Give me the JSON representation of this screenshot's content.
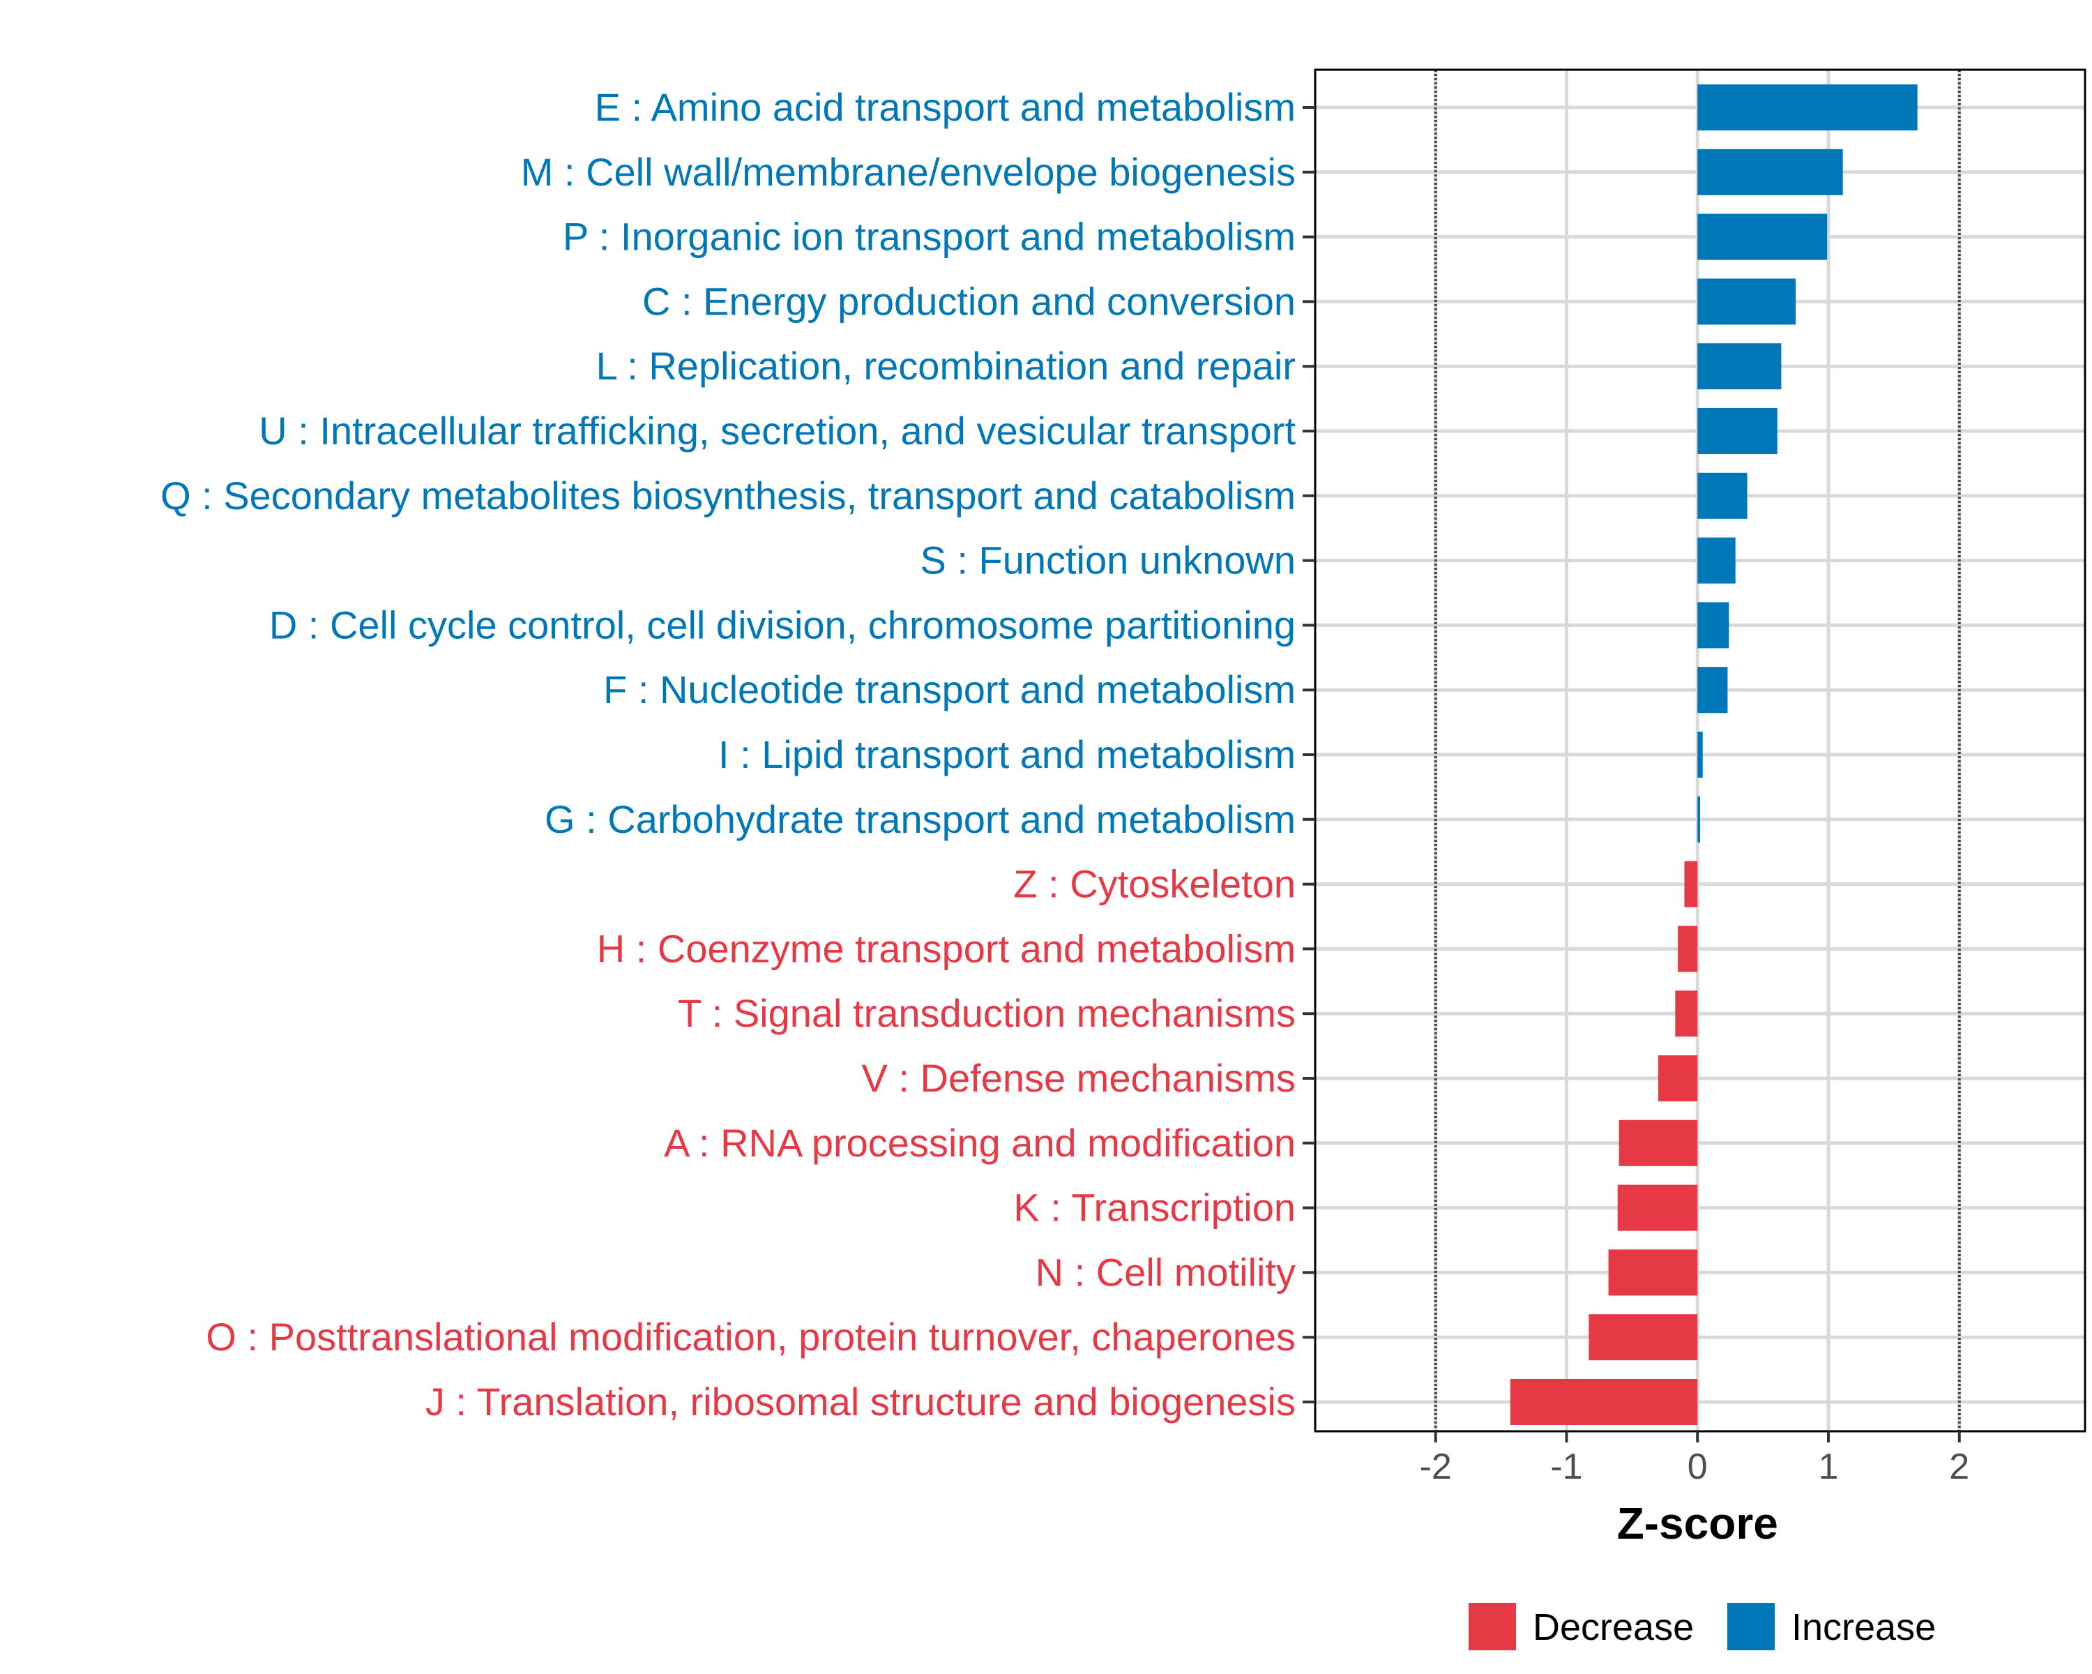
{
  "chart_data": {
    "type": "bar",
    "orientation": "horizontal",
    "title": "",
    "xlabel": "Z-score",
    "ylabel": "",
    "xlim": [
      -2.92,
      2.96
    ],
    "xticks": [
      -2,
      -1,
      0,
      1,
      2
    ],
    "xtick_labels": [
      "-2",
      "-1",
      "0",
      "1",
      "2"
    ],
    "reference_lines": [
      -2,
      2
    ],
    "grid": true,
    "colors": {
      "Increase": "#0077B6",
      "Decrease": "#E63946"
    },
    "categories": [
      "E : Amino acid transport and metabolism",
      "M : Cell wall/membrane/envelope biogenesis",
      "P : Inorganic ion transport and metabolism",
      "C : Energy production and conversion",
      "L : Replication, recombination and repair",
      "U : Intracellular trafficking, secretion, and vesicular transport",
      "Q : Secondary metabolites biosynthesis, transport and catabolism",
      "S : Function unknown",
      "D : Cell cycle control, cell division, chromosome partitioning",
      "F : Nucleotide transport and metabolism",
      "I : Lipid transport and metabolism",
      "G : Carbohydrate transport and metabolism",
      "Z : Cytoskeleton",
      "H : Coenzyme transport and metabolism",
      "T : Signal transduction mechanisms",
      "V : Defense mechanisms",
      "A : RNA processing and modification",
      "K : Transcription",
      "N : Cell motility",
      "O : Posttranslational modification, protein turnover, chaperones",
      "J : Translation, ribosomal structure and biogenesis"
    ],
    "values": [
      1.68,
      1.11,
      0.99,
      0.75,
      0.64,
      0.61,
      0.38,
      0.29,
      0.24,
      0.23,
      0.04,
      0.02,
      -0.1,
      -0.15,
      -0.17,
      -0.3,
      -0.6,
      -0.61,
      -0.68,
      -0.83,
      -1.43
    ],
    "groups": [
      "Increase",
      "Increase",
      "Increase",
      "Increase",
      "Increase",
      "Increase",
      "Increase",
      "Increase",
      "Increase",
      "Increase",
      "Increase",
      "Increase",
      "Decrease",
      "Decrease",
      "Decrease",
      "Decrease",
      "Decrease",
      "Decrease",
      "Decrease",
      "Decrease",
      "Decrease"
    ],
    "legend": {
      "position": "bottom",
      "entries": [
        "Decrease",
        "Increase"
      ]
    }
  }
}
